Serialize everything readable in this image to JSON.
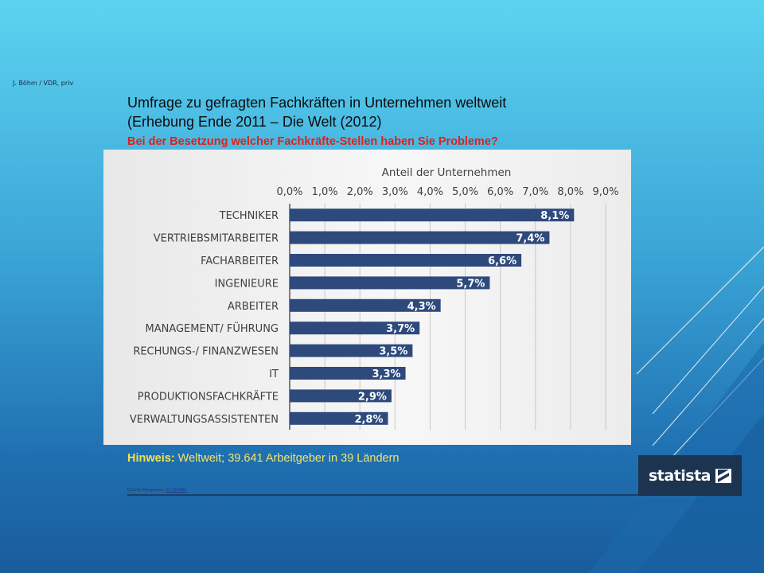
{
  "slide": {
    "credit": "J. Böhm / VDR, priv",
    "title_line1": "Umfrage zu gefragten Fachkräften in Unternehmen weltweit",
    "title_line2": "(Erhebung Ende 2011 – Die Welt (2012)",
    "question": "Bei der Besetzung welcher Fachkräfte-Stellen haben Sie Probleme?",
    "hint_label": "Hinweis:",
    "hint_text": " Weltweit; 39.641 Arbeitgeber in 39 Ländern",
    "dot": ".",
    "source_label": "Quelle: Manpower; ",
    "source_link": "ID 216880",
    "logo_text": "statista",
    "colors": {
      "bar": "#2e4a7d",
      "question": "#e0201c",
      "hint": "#f2e36a",
      "logo_bg": "#1d3450"
    }
  },
  "chart_data": {
    "type": "bar",
    "orientation": "horizontal",
    "axis_title": "Anteil der Unternehmen",
    "xlim": [
      0,
      9
    ],
    "tick_labels": [
      "0,0%",
      "1,0%",
      "2,0%",
      "3,0%",
      "4,0%",
      "5,0%",
      "6,0%",
      "7,0%",
      "8,0%",
      "9,0%"
    ],
    "categories": [
      "TECHNIKER",
      "VERTRIEBSMITARBEITER",
      "FACHARBEITER",
      "INGENIEURE",
      "ARBEITER",
      "MANAGEMENT/ FÜHRUNG",
      "RECHUNGS-/ FINANZWESEN",
      "IT",
      "PRODUKTIONSFACHKRÄFTE",
      "VERWALTUNGSASSISTENTEN"
    ],
    "values": [
      8.1,
      7.4,
      6.6,
      5.7,
      4.3,
      3.7,
      3.5,
      3.3,
      2.9,
      2.8
    ],
    "value_labels": [
      "8,1%",
      "7,4%",
      "6,6%",
      "5,7%",
      "4,3%",
      "3,7%",
      "3,5%",
      "3,3%",
      "2,9%",
      "2,8%"
    ],
    "axis_position": "top",
    "grid": true,
    "legend": false
  }
}
